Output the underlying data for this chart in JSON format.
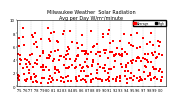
{
  "title": "Milwaukee Weather  Solar Radiation\nAvg per Day W/m²/minute",
  "title_fontsize": 3.5,
  "background_color": "#ffffff",
  "ylim": [
    0,
    10
  ],
  "xlim": [
    0,
    53
  ],
  "ylabel_fontsize": 2.8,
  "xlabel_fontsize": 2.5,
  "yticks": [
    0,
    2,
    4,
    6,
    8,
    10
  ],
  "ytick_labels": [
    "0",
    "2",
    "4",
    "6",
    "8",
    "10"
  ],
  "xtick_positions": [
    1,
    3,
    5,
    7,
    9,
    11,
    13,
    15,
    17,
    19,
    21,
    23,
    25,
    27,
    29,
    31,
    33,
    35,
    37,
    39,
    41,
    43,
    45,
    47,
    49,
    51
  ],
  "xtick_labels": [
    "'75",
    "'76",
    "'77",
    "'78",
    "'79",
    "'80",
    "'81",
    "'82",
    "'83",
    "'84",
    "'85",
    "'86",
    "'87",
    "'88",
    "'89",
    "'90",
    "'91",
    "'92",
    "'93",
    "'94",
    "'95",
    "'96",
    "'97",
    "'98",
    "'99",
    "'00"
  ],
  "grid_positions": [
    1,
    5,
    9,
    13,
    17,
    21,
    25,
    29,
    33,
    37,
    41,
    45,
    49
  ],
  "legend_labels": [
    "Average",
    "High"
  ],
  "legend_colors": [
    "red",
    "black"
  ],
  "dot_size_red": 0.6,
  "dot_size_black": 0.5
}
